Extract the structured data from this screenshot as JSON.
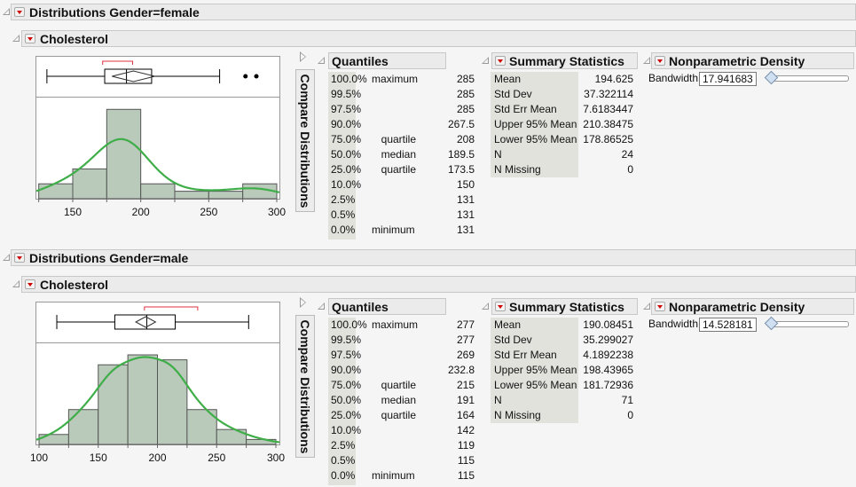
{
  "colors": {
    "dropdown_red": "#d00000",
    "bar_fill": "#b9c9ba",
    "bar_stroke": "#555555",
    "density_curve": "#3fae49",
    "shortest_half": "#e03040"
  },
  "sections": [
    {
      "title": "Distributions Gender=female",
      "variable": "Cholesterol",
      "compare_label": "Compare Distributions",
      "quantiles": {
        "title": "Quantiles",
        "rows": [
          {
            "pct": "100.0%",
            "label": "maximum",
            "value": "285"
          },
          {
            "pct": "99.5%",
            "label": "",
            "value": "285"
          },
          {
            "pct": "97.5%",
            "label": "",
            "value": "285"
          },
          {
            "pct": "90.0%",
            "label": "",
            "value": "267.5"
          },
          {
            "pct": "75.0%",
            "label": "quartile",
            "value": "208"
          },
          {
            "pct": "50.0%",
            "label": "median",
            "value": "189.5"
          },
          {
            "pct": "25.0%",
            "label": "quartile",
            "value": "173.5"
          },
          {
            "pct": "10.0%",
            "label": "",
            "value": "150"
          },
          {
            "pct": "2.5%",
            "label": "",
            "value": "131"
          },
          {
            "pct": "0.5%",
            "label": "",
            "value": "131"
          },
          {
            "pct": "0.0%",
            "label": "minimum",
            "value": "131"
          }
        ]
      },
      "summary": {
        "title": "Summary Statistics",
        "rows": [
          {
            "label": "Mean",
            "value": "194.625"
          },
          {
            "label": "Std Dev",
            "value": "37.322114"
          },
          {
            "label": "Std Err Mean",
            "value": "7.6183447"
          },
          {
            "label": "Upper 95% Mean",
            "value": "210.38475"
          },
          {
            "label": "Lower 95% Mean",
            "value": "178.86525"
          },
          {
            "label": "N",
            "value": "24"
          },
          {
            "label": "N Missing",
            "value": "0"
          }
        ]
      },
      "density": {
        "title": "Nonparametric Density",
        "bandwidth_label": "Bandwidth",
        "bandwidth": "17.941683",
        "slider_position": 0.0
      }
    },
    {
      "title": "Distributions Gender=male",
      "variable": "Cholesterol",
      "compare_label": "Compare Distributions",
      "quantiles": {
        "title": "Quantiles",
        "rows": [
          {
            "pct": "100.0%",
            "label": "maximum",
            "value": "277"
          },
          {
            "pct": "99.5%",
            "label": "",
            "value": "277"
          },
          {
            "pct": "97.5%",
            "label": "",
            "value": "269"
          },
          {
            "pct": "90.0%",
            "label": "",
            "value": "232.8"
          },
          {
            "pct": "75.0%",
            "label": "quartile",
            "value": "215"
          },
          {
            "pct": "50.0%",
            "label": "median",
            "value": "191"
          },
          {
            "pct": "25.0%",
            "label": "quartile",
            "value": "164"
          },
          {
            "pct": "10.0%",
            "label": "",
            "value": "142"
          },
          {
            "pct": "2.5%",
            "label": "",
            "value": "119"
          },
          {
            "pct": "0.5%",
            "label": "",
            "value": "115"
          },
          {
            "pct": "0.0%",
            "label": "minimum",
            "value": "115"
          }
        ]
      },
      "summary": {
        "title": "Summary Statistics",
        "rows": [
          {
            "label": "Mean",
            "value": "190.08451"
          },
          {
            "label": "Std Dev",
            "value": "35.299027"
          },
          {
            "label": "Std Err Mean",
            "value": "4.1892238"
          },
          {
            "label": "Upper 95% Mean",
            "value": "198.43965"
          },
          {
            "label": "Lower 95% Mean",
            "value": "181.72936"
          },
          {
            "label": "N",
            "value": "71"
          },
          {
            "label": "N Missing",
            "value": "0"
          }
        ]
      },
      "density": {
        "title": "Nonparametric Density",
        "bandwidth_label": "Bandwidth",
        "bandwidth": "14.528181",
        "slider_position": 0.0
      }
    }
  ],
  "chart_data": [
    {
      "type": "bar",
      "variable": "Cholesterol",
      "group": "female",
      "bin_edges": [
        125,
        150,
        175,
        200,
        225,
        250,
        275,
        300
      ],
      "counts": [
        2,
        4,
        12,
        2,
        1,
        1,
        2
      ],
      "xlim": [
        122,
        302
      ],
      "ylim": [
        0,
        13.7
      ],
      "x_ticks": [
        125,
        150,
        175,
        200,
        225,
        250,
        275,
        300
      ],
      "x_tick_labels": [
        "150",
        "200",
        "250",
        "300"
      ],
      "density_bandwidth": 17.941683,
      "boxplot": {
        "whisker_low": 131,
        "q1": 173.5,
        "median": 189.5,
        "q3": 208,
        "whisker_high": 258,
        "outliers": [
          277,
          285
        ],
        "mean": 194.625,
        "mean_ci": [
          178.86525,
          210.38475
        ],
        "shortest_half": [
          172,
          194
        ]
      }
    },
    {
      "type": "bar",
      "variable": "Cholesterol",
      "group": "male",
      "bin_edges": [
        100,
        125,
        150,
        175,
        200,
        225,
        250,
        275,
        300
      ],
      "counts": [
        2,
        7,
        16,
        18,
        17,
        7,
        3,
        1
      ],
      "xlim": [
        97,
        304
      ],
      "ylim": [
        0,
        20.5
      ],
      "x_ticks": [
        100,
        125,
        150,
        175,
        200,
        225,
        250,
        275,
        300
      ],
      "x_tick_labels": [
        "100",
        "150",
        "200",
        "250",
        "300"
      ],
      "density_bandwidth": 14.528181,
      "boxplot": {
        "whisker_low": 115,
        "q1": 164,
        "median": 191,
        "q3": 215,
        "whisker_high": 277,
        "outliers": [],
        "mean": 190.08451,
        "mean_ci": [
          181.72936,
          198.43965
        ],
        "shortest_half": [
          189,
          234
        ]
      }
    }
  ]
}
